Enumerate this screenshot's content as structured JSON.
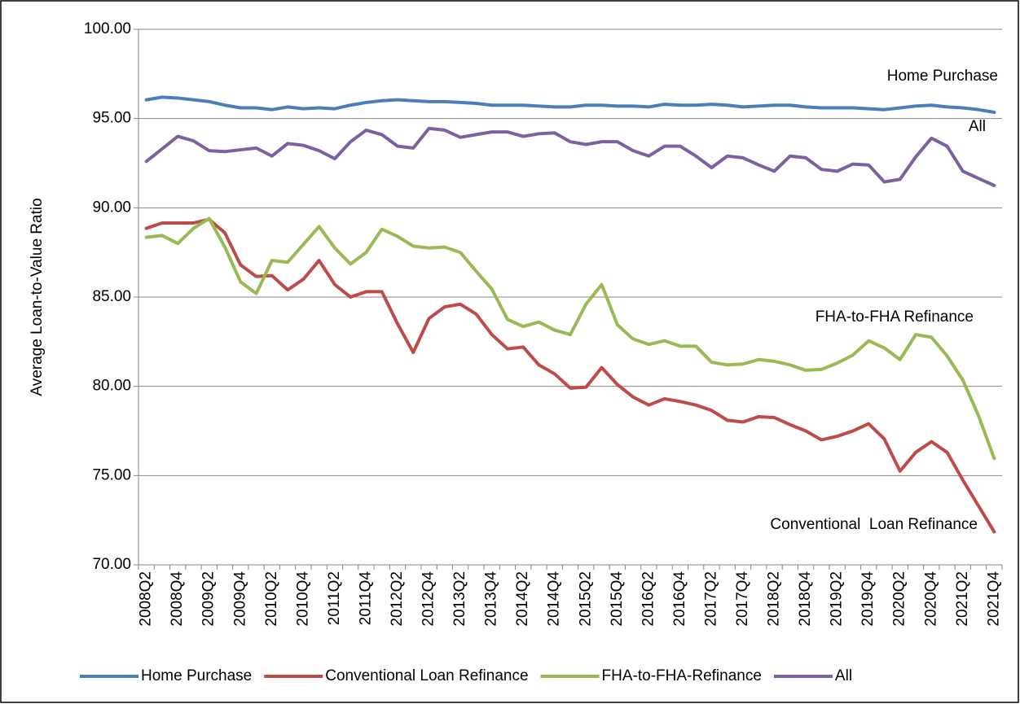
{
  "chart_data": {
    "type": "line",
    "y_label": "Average Loan-to-Value Ratio",
    "categories": [
      "2008Q2",
      null,
      "2008Q4",
      null,
      "2009Q2",
      null,
      "2009Q4",
      null,
      "2010Q2",
      null,
      "2010Q4",
      null,
      "2011Q2",
      null,
      "2011Q4",
      null,
      "2012Q2",
      null,
      "2012Q4",
      null,
      "2013Q2",
      null,
      "2013Q4",
      null,
      "2014Q2",
      null,
      "2014Q4",
      null,
      "2015Q2",
      null,
      "2015Q4",
      null,
      "2016Q2",
      null,
      "2016Q4",
      null,
      "2017Q2",
      null,
      "2017Q4",
      null,
      "2018Q2",
      null,
      "2018Q4",
      null,
      "2019Q2",
      null,
      "2019Q4",
      null,
      "2020Q2",
      null,
      "2020Q4",
      null,
      "2021Q2",
      null,
      "2021Q4"
    ],
    "series": [
      {
        "name": "Home Purchase",
        "color": "#4a7ebb",
        "values": [
          96.05,
          96.2,
          96.15,
          96.05,
          95.95,
          95.75,
          95.6,
          95.6,
          95.5,
          95.65,
          95.55,
          95.6,
          95.55,
          95.75,
          95.9,
          96.0,
          96.05,
          96.0,
          95.95,
          95.95,
          95.9,
          95.85,
          95.75,
          95.75,
          95.75,
          95.7,
          95.65,
          95.65,
          95.75,
          95.75,
          95.7,
          95.7,
          95.65,
          95.8,
          95.75,
          95.75,
          95.8,
          95.75,
          95.65,
          95.7,
          95.75,
          95.75,
          95.65,
          95.6,
          95.6,
          95.6,
          95.55,
          95.5,
          95.6,
          95.7,
          95.75,
          95.65,
          95.6,
          95.5,
          95.35
        ]
      },
      {
        "name": "Conventional Loan Refinance",
        "color": "#be4b48",
        "values": [
          88.85,
          89.15,
          89.15,
          89.15,
          89.35,
          88.6,
          86.8,
          86.15,
          86.2,
          85.4,
          86.0,
          87.05,
          85.7,
          85.0,
          85.3,
          85.3,
          83.5,
          81.9,
          83.8,
          84.45,
          84.6,
          84.05,
          82.9,
          82.1,
          82.2,
          81.2,
          80.7,
          79.9,
          79.95,
          81.05,
          80.1,
          79.4,
          78.95,
          79.3,
          79.15,
          78.95,
          78.65,
          78.1,
          78.0,
          78.3,
          78.25,
          77.85,
          77.5,
          77.0,
          77.2,
          77.5,
          77.9,
          77.05,
          75.25,
          76.3,
          76.9,
          76.3,
          74.75,
          73.3,
          71.85
        ]
      },
      {
        "name": "FHA-to-FHA-Refinance",
        "color": "#98b954",
        "values": [
          88.35,
          88.45,
          88.0,
          88.85,
          89.4,
          87.8,
          85.85,
          85.2,
          87.05,
          86.95,
          87.95,
          88.95,
          87.75,
          86.85,
          87.5,
          88.8,
          88.4,
          87.85,
          87.75,
          87.8,
          87.5,
          86.45,
          85.45,
          83.75,
          83.35,
          83.6,
          83.15,
          82.9,
          84.6,
          85.7,
          83.45,
          82.65,
          82.35,
          82.55,
          82.25,
          82.25,
          81.35,
          81.2,
          81.25,
          81.5,
          81.4,
          81.2,
          80.9,
          80.95,
          81.3,
          81.75,
          82.55,
          82.15,
          81.5,
          82.9,
          82.75,
          81.7,
          80.35,
          78.35,
          75.95
        ]
      },
      {
        "name": "All",
        "color": "#7d60a0",
        "values": [
          92.6,
          93.3,
          94.0,
          93.75,
          93.2,
          93.15,
          93.25,
          93.35,
          92.9,
          93.6,
          93.5,
          93.2,
          92.75,
          93.7,
          94.35,
          94.1,
          93.45,
          93.35,
          94.45,
          94.35,
          93.95,
          94.1,
          94.25,
          94.25,
          94.0,
          94.15,
          94.2,
          93.7,
          93.55,
          93.7,
          93.7,
          93.2,
          92.9,
          93.45,
          93.45,
          92.9,
          92.25,
          92.9,
          92.8,
          92.4,
          92.05,
          92.9,
          92.8,
          92.15,
          92.05,
          92.45,
          92.4,
          91.45,
          91.6,
          92.85,
          93.9,
          93.45,
          92.05,
          91.65,
          91.25
        ]
      }
    ],
    "annotations": [
      "Home Purchase",
      "All",
      "FHA-to-FHA Refinance",
      "Conventional  Loan Refinance"
    ],
    "ylim": [
      70,
      100
    ],
    "yticks": [
      {
        "value": 70,
        "label": "70.00"
      },
      {
        "value": 75,
        "label": "75.00"
      },
      {
        "value": 80,
        "label": "80.00"
      },
      {
        "value": 85,
        "label": "85.00"
      },
      {
        "value": 90,
        "label": "90.00"
      },
      {
        "value": 95,
        "label": "95.00"
      },
      {
        "value": 100,
        "label": "100.00"
      }
    ],
    "grid": true,
    "legend": "bottom"
  }
}
